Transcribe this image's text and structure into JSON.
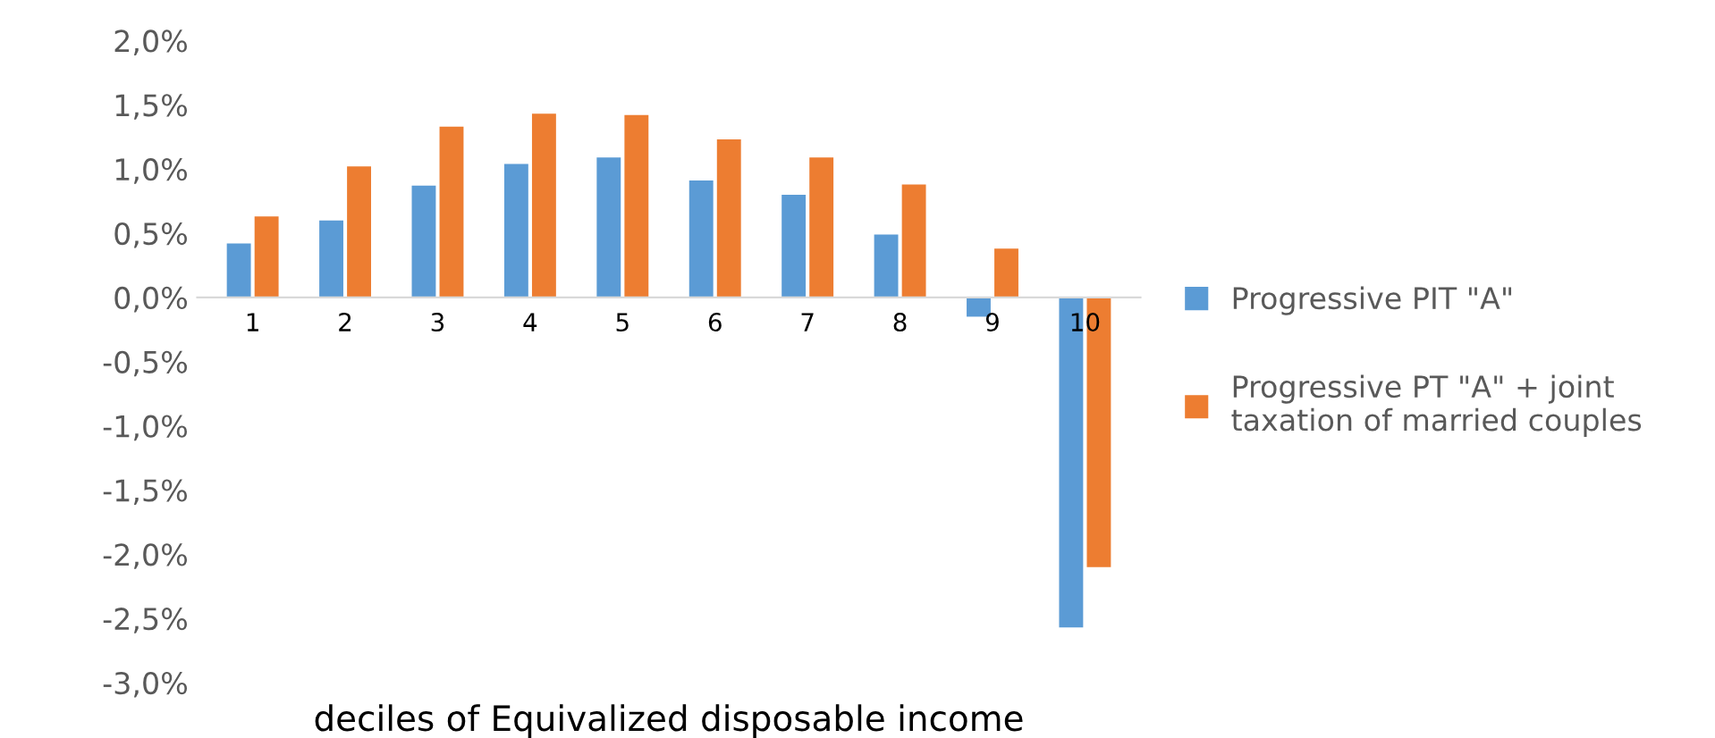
{
  "chart_data": {
    "type": "bar",
    "xlabel": "deciles of Equivalized disposable income",
    "categories": [
      "1",
      "2",
      "3",
      "4",
      "5",
      "6",
      "7",
      "8",
      "9",
      "10"
    ],
    "series": [
      {
        "name": "Progressive PIT \"A\"",
        "color": "#5b9bd5",
        "values": [
          0.42,
          0.6,
          0.87,
          1.04,
          1.09,
          0.91,
          0.8,
          0.49,
          -0.15,
          -2.57
        ]
      },
      {
        "name": "Progressive PT \"A\" + joint taxation of married couples",
        "color": "#ed7d31",
        "values": [
          0.63,
          1.02,
          1.33,
          1.43,
          1.42,
          1.23,
          1.09,
          0.88,
          0.38,
          -2.1
        ]
      }
    ],
    "ylim": [
      -3.0,
      2.0
    ],
    "yticks": [
      {
        "value": -3.0,
        "label": "-3,0%"
      },
      {
        "value": -2.5,
        "label": "-2,5%"
      },
      {
        "value": -2.0,
        "label": "-2,0%"
      },
      {
        "value": -1.5,
        "label": "-1,5%"
      },
      {
        "value": -1.0,
        "label": "-1,0%"
      },
      {
        "value": -0.5,
        "label": "-0,5%"
      },
      {
        "value": 0.0,
        "label": "0,0%"
      },
      {
        "value": 0.5,
        "label": "0,5%"
      },
      {
        "value": 1.0,
        "label": "1,0%"
      },
      {
        "value": 1.5,
        "label": "1,5%"
      },
      {
        "value": 2.0,
        "label": "2,0%"
      }
    ],
    "grid": false,
    "legend": "right"
  }
}
